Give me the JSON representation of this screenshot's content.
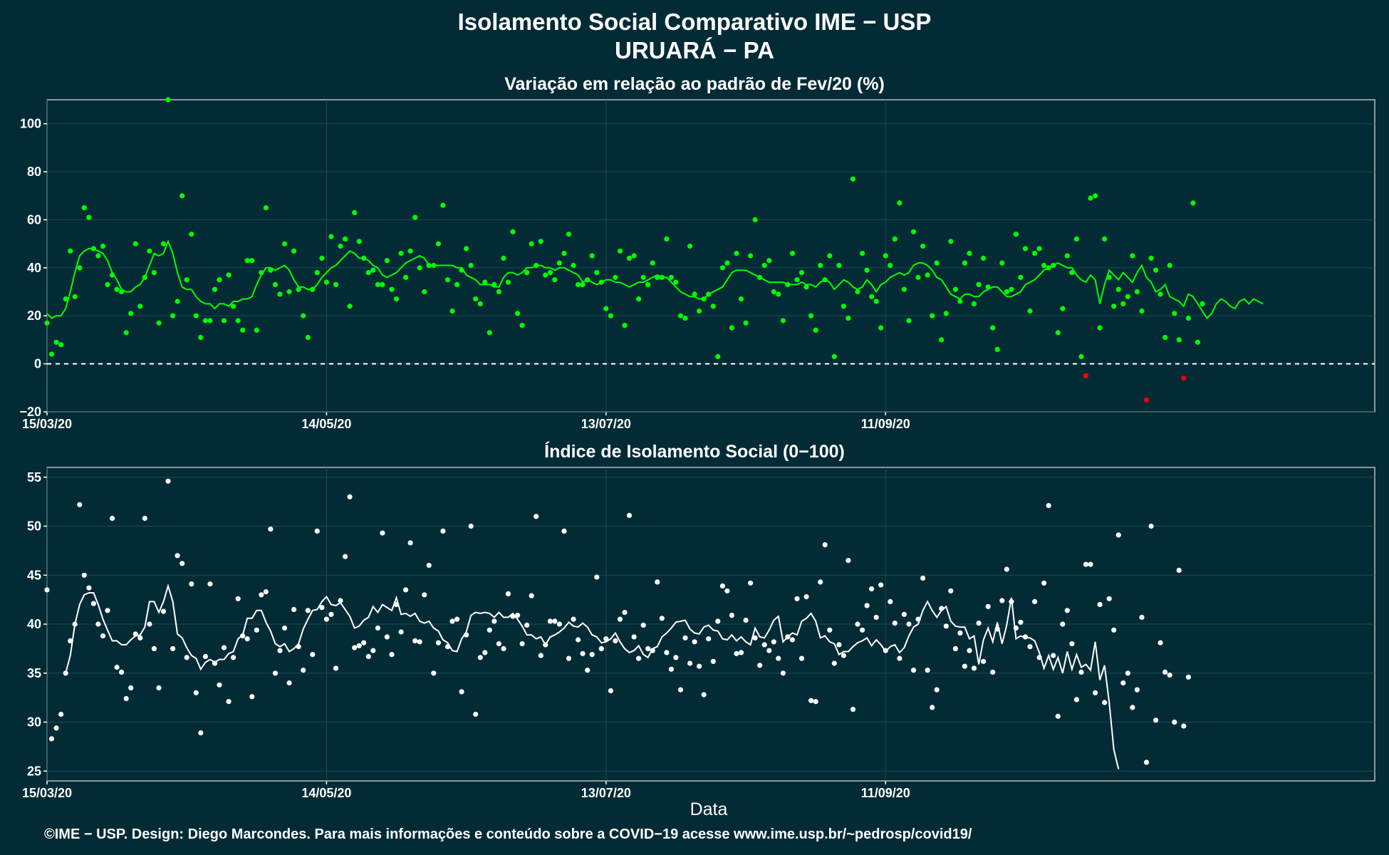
{
  "titles": {
    "main": "Isolamento Social Comparativo IME − USP",
    "subtitle": "URUARÁ − PA",
    "top_panel": "Variação em relação ao padrão de Fev/20 (%)",
    "bottom_panel": "Índice de Isolamento Social (0−100)",
    "x_axis": "Data",
    "footer": "©IME − USP. Design: Diego Marcondes. Para mais informações e conteúdo sobre a COVID−19 acesse www.ime.usp.br/~pedrosp/covid19/"
  },
  "colors": {
    "background": "#022b36",
    "top_series": "#00ff00",
    "negative": "#ff0000",
    "bottom_series": "#ffffff"
  },
  "chart_data": [
    {
      "type": "scatter",
      "title": "Variação em relação ao padrão de Fev/20 (%)",
      "xlabel": "",
      "ylabel": "",
      "x_range": [
        "15/03/20",
        "25/12/20"
      ],
      "ylim": [
        -20,
        110
      ],
      "y_ticks": [
        -20,
        0,
        20,
        40,
        60,
        80,
        100
      ],
      "x_ticks": [
        "15/03/20",
        "14/05/20",
        "13/07/20",
        "11/09/20"
      ],
      "reference_line": 0,
      "grid": true,
      "start_date": "15/03/20",
      "values": [
        17,
        4,
        9,
        8,
        27,
        47,
        28,
        40,
        65,
        61,
        48,
        45,
        49,
        33,
        37,
        31,
        30,
        13,
        21,
        50,
        24,
        36,
        47,
        38,
        17,
        50,
        110,
        20,
        26,
        70,
        35,
        54,
        20,
        11,
        18,
        18,
        31,
        35,
        18,
        37,
        24,
        18,
        14,
        43,
        43,
        14,
        38,
        65,
        39,
        33,
        29,
        50,
        30,
        47,
        31,
        20,
        11,
        31,
        38,
        44,
        34,
        53,
        33,
        49,
        52,
        24,
        63,
        51,
        44,
        38,
        39,
        33,
        33,
        43,
        31,
        27,
        46,
        36,
        47,
        61,
        40,
        30,
        41,
        41,
        50,
        66,
        35,
        22,
        33,
        39,
        48,
        41,
        27,
        25,
        34,
        13,
        33,
        30,
        44,
        34,
        55,
        21,
        16,
        38,
        50,
        41,
        51,
        37,
        38,
        35,
        42,
        46,
        54,
        41,
        33,
        33,
        35,
        45,
        38,
        34,
        23,
        20,
        36,
        47,
        16,
        44,
        45,
        27,
        36,
        33,
        42,
        36,
        36,
        52,
        36,
        34,
        20,
        19,
        49,
        29,
        22,
        27,
        29,
        24,
        3,
        40,
        42,
        15,
        46,
        27,
        17,
        45,
        60,
        36,
        41,
        43,
        30,
        29,
        18,
        33,
        46,
        35,
        38,
        32,
        20,
        14,
        41,
        35,
        45,
        3,
        41,
        24,
        19,
        77,
        30,
        46,
        39,
        28,
        26,
        15,
        45,
        41,
        52,
        67,
        31,
        18,
        55,
        36,
        49,
        37,
        20,
        42,
        10,
        21,
        51,
        31,
        26,
        42,
        46,
        25,
        33,
        44,
        32,
        15,
        6,
        42,
        30,
        31,
        54,
        36,
        48,
        22,
        46,
        48,
        41,
        40,
        41,
        13,
        23,
        45,
        38,
        52,
        3,
        -5,
        69,
        70,
        15,
        52,
        36,
        24,
        31,
        25,
        28,
        45,
        30,
        22,
        -15,
        44,
        39,
        29,
        11,
        41,
        21,
        10,
        -6,
        19,
        67,
        9,
        25
      ],
      "moving_average": [
        21,
        19,
        20,
        20,
        23,
        30,
        38,
        45,
        47,
        48,
        48,
        47,
        46,
        43,
        38,
        35,
        31,
        30,
        30,
        32,
        33,
        36,
        41,
        46,
        45,
        46,
        51,
        46,
        38,
        32,
        31,
        31,
        28,
        26,
        25,
        25,
        23,
        25,
        25,
        24,
        26,
        26,
        27,
        27,
        28,
        33,
        37,
        40,
        40,
        39,
        40,
        41,
        39,
        35,
        32,
        32,
        31,
        31,
        33,
        36,
        38,
        40,
        41,
        43,
        45,
        47,
        46,
        44,
        44,
        43,
        41,
        40,
        37,
        36,
        37,
        38,
        40,
        42,
        43,
        44,
        45,
        44,
        41,
        41,
        41,
        41,
        41,
        41,
        40,
        40,
        37,
        36,
        35,
        33,
        33,
        33,
        32,
        32,
        36,
        38,
        38,
        37,
        38,
        40,
        40,
        41,
        41,
        40,
        40,
        39,
        40,
        40,
        39,
        38,
        37,
        34,
        35,
        34,
        33,
        34,
        35,
        35,
        34,
        34,
        33,
        32,
        33,
        34,
        34,
        35,
        36,
        37,
        36,
        36,
        34,
        32,
        30,
        29,
        28,
        28,
        27,
        27,
        29,
        30,
        31,
        32,
        35,
        38,
        39,
        39,
        39,
        38,
        37,
        36,
        35,
        34,
        34,
        34,
        34,
        33,
        33,
        33,
        34,
        33,
        33,
        32,
        34,
        35,
        34,
        31,
        33,
        35,
        34,
        32,
        31,
        32,
        35,
        33,
        30,
        33,
        34,
        36,
        37,
        38,
        37,
        38,
        41,
        42,
        42,
        41,
        39,
        36,
        35,
        32,
        29,
        28,
        27,
        29,
        29,
        28,
        28,
        30,
        31,
        32,
        32,
        30,
        28,
        28,
        29,
        30,
        33,
        34,
        35,
        37,
        39,
        40,
        41,
        42,
        41,
        40,
        40,
        37,
        35,
        34,
        37,
        35,
        25,
        33,
        39,
        37,
        35,
        38,
        36,
        34,
        38,
        41,
        36,
        34,
        30,
        31,
        33,
        28,
        27,
        26,
        24,
        29,
        28,
        25,
        22,
        19,
        21,
        25,
        27,
        26,
        24,
        23,
        26,
        27,
        25,
        27,
        26,
        25
      ]
    },
    {
      "type": "scatter",
      "title": "Índice de Isolamento Social (0−100)",
      "xlabel": "Data",
      "ylabel": "",
      "x_range": [
        "15/03/20",
        "25/12/20"
      ],
      "ylim": [
        24,
        56
      ],
      "y_ticks": [
        25,
        30,
        35,
        40,
        45,
        50,
        55
      ],
      "x_ticks": [
        "15/03/20",
        "14/05/20",
        "13/07/20",
        "11/09/20"
      ],
      "grid": true,
      "start_date": "15/03/20",
      "values": [
        43.5,
        28.3,
        29.4,
        30.8,
        35,
        38.3,
        40,
        52.2,
        45,
        43.7,
        42.1,
        40,
        38.8,
        41.4,
        50.8,
        35.6,
        35.1,
        32.4,
        33.5,
        39,
        38.6,
        50.8,
        40,
        37.5,
        33.5,
        41.3,
        54.6,
        37.5,
        47,
        46.2,
        36.6,
        44.1,
        33,
        28.9,
        36.7,
        44.1,
        36,
        33.8,
        37.6,
        32.1,
        36.6,
        42.6,
        38.8,
        38.5,
        32.6,
        39.4,
        43,
        43.3,
        49.7,
        35,
        37.3,
        39.6,
        34,
        41.5,
        37.7,
        35.3,
        41.4,
        36.9,
        49.5,
        41.7,
        40.5,
        41,
        35.5,
        42.4,
        46.9,
        53,
        37.6,
        37.8,
        38.1,
        36.7,
        37.3,
        39.6,
        49.3,
        38.7,
        36.9,
        42,
        39.2,
        43.5,
        48.3,
        38.3,
        38.2,
        43,
        46,
        35,
        38.1,
        49.5,
        37.7,
        40.3,
        40.5,
        33.1,
        38.9,
        50,
        30.8,
        36.6,
        37.1,
        39.4,
        40.3,
        38,
        37.5,
        43.1,
        40.8,
        40.9,
        38,
        39.9,
        42.9,
        51,
        36.8,
        37.9,
        40.3,
        40.3,
        40,
        49.5,
        36.5,
        40.5,
        38.4,
        37,
        35.3,
        36.9,
        44.8,
        37.5,
        38.5,
        33.2,
        38.3,
        40.5,
        41.2,
        51.1,
        38.7,
        36.5,
        39.9,
        37.5,
        37.3,
        44.3,
        40.6,
        37.1,
        35.4,
        36.6,
        33.3,
        38.6,
        36,
        38.2,
        35.7,
        32.8,
        38.5,
        36.2,
        40.3,
        43.9,
        43.4,
        40.9,
        37,
        37.1,
        40.4,
        44.2,
        38.6,
        35.8,
        37.9,
        37.3,
        38.2,
        36.5,
        35,
        38.7,
        38.4,
        42.6,
        36.5,
        42.8,
        32.2,
        32.1,
        44.3,
        48.1,
        39.4,
        36,
        37.9,
        36.8,
        46.5,
        31.3,
        40,
        39.4,
        41.9,
        43.6,
        40.7,
        44,
        37.3,
        42.3,
        40.1,
        36.5,
        41,
        40,
        35.3,
        40.5,
        44.7,
        35.3,
        31.5,
        33.3,
        41.6,
        39.8,
        43.4,
        37.5,
        39.1,
        35.7,
        37.3,
        35.5,
        40.1,
        36.2,
        41.8,
        35.1,
        39.5,
        42.4,
        45.6,
        42.3,
        39.6,
        40.2,
        38.7,
        37.7,
        42.3,
        36.6,
        44.2,
        52.1,
        36.8,
        30.6,
        40,
        41.4,
        38,
        32.3,
        35.1,
        46.1,
        46.1,
        33,
        42,
        32,
        42.6,
        39.4,
        49.1,
        34,
        35,
        31.5,
        33.3,
        40.7,
        25.9,
        50,
        30.2,
        38.1,
        35.1,
        34.8,
        30,
        45.5,
        29.6,
        34.6
      ],
      "moving_average": [
        35,
        36.8,
        40,
        42,
        43,
        43.2,
        43.2,
        42,
        40.5,
        39.4,
        38.3,
        38.3,
        37.9,
        37.9,
        38.4,
        38.8,
        38.9,
        39.7,
        42.3,
        42.3,
        41.2,
        42.3,
        43.9,
        42.3,
        39,
        38.6,
        37.6,
        36.8,
        36.5,
        35.4,
        36.1,
        36.4,
        36.1,
        36.4,
        36.4,
        37,
        37.2,
        38.5,
        38.9,
        40.6,
        40.6,
        41.4,
        41.4,
        40.2,
        39.3,
        38,
        37.7,
        38,
        37.2,
        37.5,
        38,
        39.5,
        40.5,
        41.4,
        41.5,
        42.3,
        42.8,
        42,
        41.9,
        42.2,
        41.5,
        40.8,
        39.6,
        39.8,
        40.4,
        40.7,
        41.8,
        41.2,
        42,
        41.7,
        41.4,
        42.7,
        41,
        41.1,
        40.8,
        41.1,
        40.3,
        40.1,
        40.3,
        39.6,
        39.3,
        38.4,
        38.1,
        37.3,
        37.2,
        38.5,
        39.2,
        40.9,
        41.2,
        41.1,
        41.2,
        41.1,
        40.7,
        41.2,
        40.7,
        40.7,
        41.1,
        40.5,
        39.8,
        38.9,
        38.9,
        38.5,
        38.7,
        37.9,
        38.7,
        38.9,
        39.2,
        39.6,
        40.2,
        39.8,
        39.7,
        40.1,
        39.7,
        38.9,
        38.7,
        38.1,
        38.2,
        38.5,
        39.1,
        38.2,
        37.5,
        37.1,
        37.3,
        37.8,
        36.9,
        36.6,
        37.5,
        37.7,
        38.7,
        39.1,
        39.6,
        40.2,
        40.3,
        40.4,
        39.5,
        39.1,
        39,
        39.7,
        39.9,
        39.4,
        39.3,
        38.5,
        38.4,
        38.9,
        38.3,
        38.7,
        38.2,
        37.9,
        39.6,
        38.7,
        38.6,
        39.4,
        40.4,
        40.8,
        38.2,
        38.7,
        39.1,
        38.9,
        40.3,
        40.6,
        41.1,
        40.3,
        38.6,
        38.8,
        38.2,
        38,
        36.9,
        37.2,
        37.2,
        37.7,
        38.1,
        38.3,
        38.6,
        37.8,
        38.4,
        37.9,
        37.2,
        37.7,
        37.9,
        37.1,
        37.6,
        38.8,
        39.7,
        40,
        41.4,
        42.3,
        41.4,
        40.7,
        41.4,
        41.8,
        40.3,
        39.8,
        39.7,
        39.7,
        38.5,
        38.8,
        35.9,
        38.4,
        39.6,
        38.2,
        40.2,
        38,
        39.9,
        42.7,
        38.5,
        38.8,
        38.6,
        38.6,
        38.3,
        37.1,
        35.5,
        36.8,
        35.4,
        36.6,
        35,
        37.2,
        35.4,
        36.9,
        35.6,
        35.9,
        35.3,
        38.2,
        34.3,
        35.8,
        32,
        27.2,
        25.2
      ]
    }
  ]
}
